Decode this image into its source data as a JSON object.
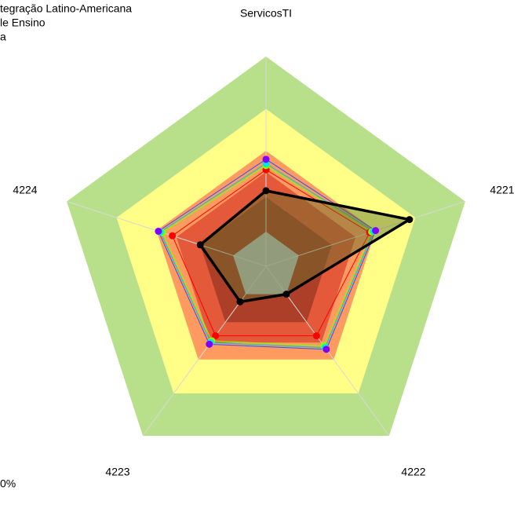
{
  "chart_data": {
    "type": "radar",
    "legend_texts": [
      "tegração Latino-Americana",
      "le Ensino",
      "a"
    ],
    "note": "0%",
    "categories": [
      "ServicosTI",
      "4221",
      "4222",
      "4223",
      "4224"
    ],
    "rlim": [
      0,
      100
    ],
    "bands": [
      {
        "to": 100,
        "color": "#b8e08a"
      },
      {
        "to": 75,
        "color": "#ffff88"
      },
      {
        "to": 55,
        "color": "#ff9a60"
      },
      {
        "to": 45,
        "color": "#e4593a"
      },
      {
        "to": 33,
        "color": "#ad3f28"
      },
      {
        "to": 16.5,
        "color": "#c0c0c0"
      }
    ],
    "grid_color": "#d8d8d8",
    "series": [
      {
        "color": "#ff0000",
        "line": "#ff0000",
        "values": [
          46,
          52,
          41,
          41,
          47
        ]
      },
      {
        "color": "#80ff00",
        "line": "#80ff00",
        "values": [
          48,
          53,
          47,
          44,
          52
        ]
      },
      {
        "color": "#00e5e5",
        "line": "#00cccc",
        "values": [
          49,
          54,
          48,
          45,
          53
        ]
      },
      {
        "color": "#8000ff",
        "line": "#3050ff",
        "values": [
          51,
          55,
          49,
          46,
          54
        ]
      },
      {
        "color": "#000000",
        "line": "#000000",
        "fill": "rgba(90,110,40,0.45)",
        "values": [
          36,
          72,
          16.5,
          21,
          33
        ]
      }
    ]
  }
}
